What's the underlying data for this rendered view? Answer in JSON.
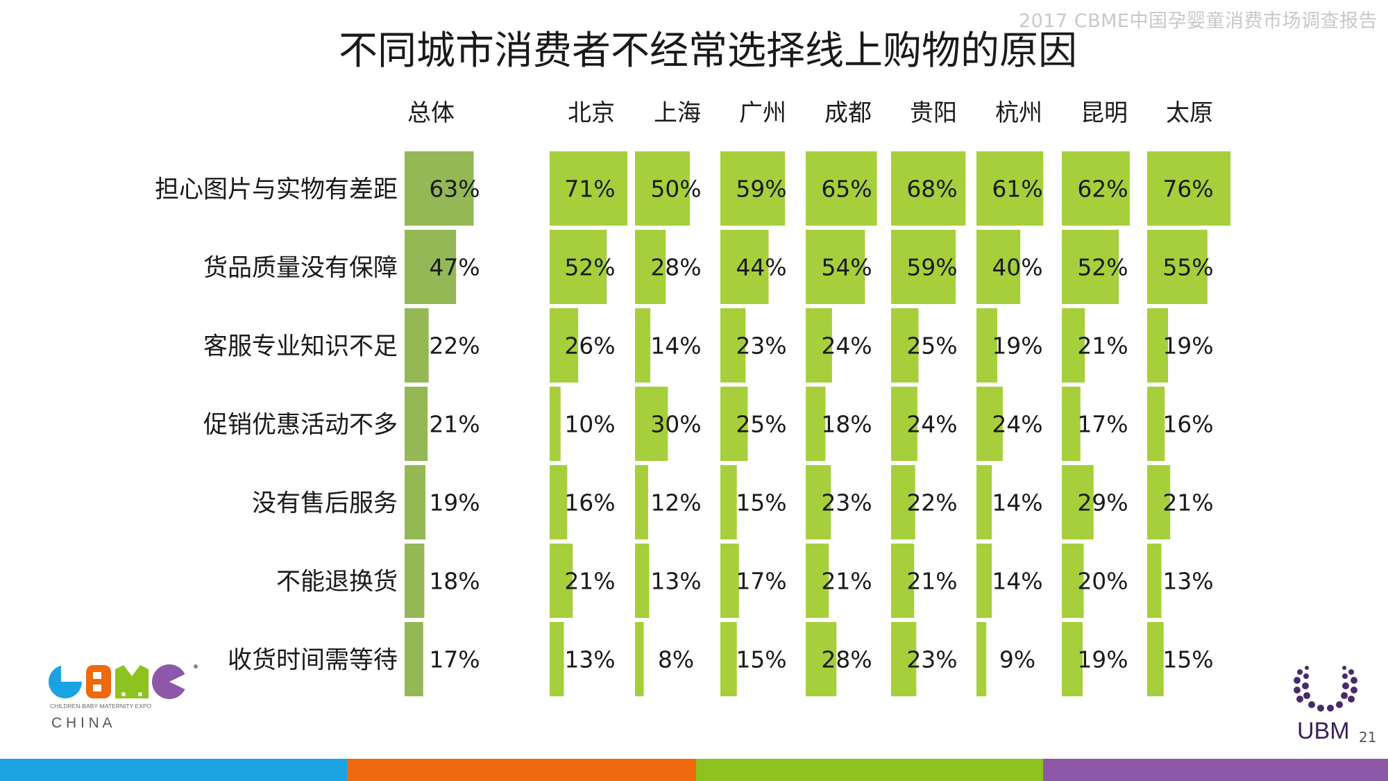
{
  "header": {
    "report_name": "2017 CBME中国孕婴童消费市场调查报告",
    "page_number": "21"
  },
  "logos": {
    "cbme_tagline": "CHILDREN·BABY·MATERNITY EXPO",
    "cbme_country": "C H I N A",
    "ubm_text": "UBM"
  },
  "colors": {
    "overall_bar": "#94b855",
    "city_bar": "#a6cf3b",
    "stripes": [
      "#1aa3e0",
      "#ef6a0c",
      "#8dc21f",
      "#8e58a8"
    ]
  },
  "chart_data": {
    "type": "bar",
    "orientation": "horizontal",
    "title": "不同城市消费者不经常选择线上购物的原因",
    "categories": [
      "担心图片与实物有差距",
      "货品质量没有保障",
      "客服专业知识不足",
      "促销优惠活动不多",
      "没有售后服务",
      "不能退换货",
      "收货时间需等待"
    ],
    "value_unit": "%",
    "xlim": [
      0,
      100
    ],
    "series": [
      {
        "name": "总体",
        "values": [
          63,
          47,
          22,
          21,
          19,
          18,
          17
        ]
      },
      {
        "name": "北京",
        "values": [
          71,
          52,
          26,
          10,
          16,
          21,
          13
        ]
      },
      {
        "name": "上海",
        "values": [
          50,
          28,
          14,
          30,
          12,
          13,
          8
        ]
      },
      {
        "name": "广州",
        "values": [
          59,
          44,
          23,
          25,
          15,
          17,
          15
        ]
      },
      {
        "name": "成都",
        "values": [
          65,
          54,
          24,
          18,
          23,
          21,
          28
        ]
      },
      {
        "name": "贵阳",
        "values": [
          68,
          59,
          25,
          24,
          22,
          21,
          23
        ]
      },
      {
        "name": "杭州",
        "values": [
          61,
          40,
          19,
          24,
          14,
          14,
          9
        ]
      },
      {
        "name": "昆明",
        "values": [
          62,
          52,
          21,
          17,
          29,
          20,
          19
        ]
      },
      {
        "name": "太原",
        "values": [
          76,
          55,
          19,
          16,
          21,
          13,
          15
        ]
      }
    ]
  }
}
